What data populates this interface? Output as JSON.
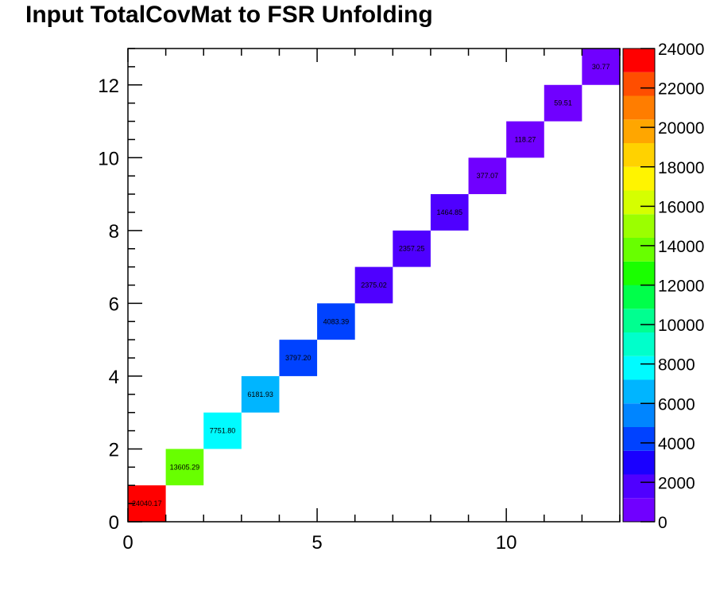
{
  "chart_data": {
    "type": "heatmap",
    "title": "Input TotalCovMat to FSR Unfolding",
    "xlabel": "",
    "ylabel": "",
    "xlim": [
      0,
      13
    ],
    "ylim": [
      0,
      13
    ],
    "x_major_ticks": [
      0,
      5,
      10
    ],
    "y_major_ticks": [
      0,
      2,
      4,
      6,
      8,
      10,
      12
    ],
    "cells": [
      {
        "x": 0,
        "y": 0,
        "value": 24040.17,
        "label": "24040.17"
      },
      {
        "x": 1,
        "y": 1,
        "value": 13605.29,
        "label": "13605.29"
      },
      {
        "x": 2,
        "y": 2,
        "value": 7751.8,
        "label": "7751.80"
      },
      {
        "x": 3,
        "y": 3,
        "value": 6181.93,
        "label": "6181.93"
      },
      {
        "x": 4,
        "y": 4,
        "value": 3797.2,
        "label": "3797.20"
      },
      {
        "x": 5,
        "y": 5,
        "value": 4083.39,
        "label": "4083.39"
      },
      {
        "x": 6,
        "y": 6,
        "value": 2375.02,
        "label": "2375.02"
      },
      {
        "x": 7,
        "y": 7,
        "value": 2357.25,
        "label": "2357.25"
      },
      {
        "x": 8,
        "y": 8,
        "value": 1464.85,
        "label": "1464.85"
      },
      {
        "x": 9,
        "y": 9,
        "value": 377.07,
        "label": "377.07"
      },
      {
        "x": 10,
        "y": 10,
        "value": 118.27,
        "label": "118.27"
      },
      {
        "x": 11,
        "y": 11,
        "value": 59.51,
        "label": "59.51"
      },
      {
        "x": 12,
        "y": 12,
        "value": 30.77,
        "label": "30.77"
      }
    ],
    "colorbar": {
      "min": 0,
      "max": 24000,
      "tick_labels": [
        "0",
        "2000",
        "4000",
        "6000",
        "8000",
        "10000",
        "12000",
        "14000",
        "16000",
        "18000",
        "20000",
        "22000",
        "24000"
      ],
      "colors": [
        "#7000ff",
        "#4f00ff",
        "#1a00ff",
        "#0042ff",
        "#0085ff",
        "#00b5ff",
        "#00fbff",
        "#00ffcb",
        "#00ff90",
        "#00ff4a",
        "#1aff00",
        "#68ff00",
        "#9bff00",
        "#d5ff00",
        "#fff400",
        "#ffd200",
        "#ffa600",
        "#ff7d00",
        "#ff4e00",
        "#ff0000"
      ]
    },
    "grid": false,
    "legend": "colorbar-right"
  }
}
